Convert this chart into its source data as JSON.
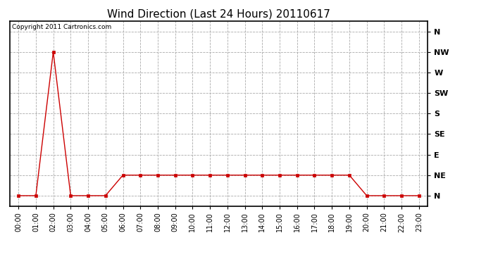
{
  "title": "Wind Direction (Last 24 Hours) 20110617",
  "copyright_text": "Copyright 2011 Cartronics.com",
  "background_color": "#ffffff",
  "plot_bg_color": "#ffffff",
  "line_color": "#cc0000",
  "marker": "s",
  "marker_size": 3,
  "marker_color": "#cc0000",
  "grid_color": "#aaaaaa",
  "grid_style": "--",
  "x_labels": [
    "00:00",
    "01:00",
    "02:00",
    "03:00",
    "04:00",
    "05:00",
    "06:00",
    "07:00",
    "08:00",
    "09:00",
    "10:00",
    "11:00",
    "12:00",
    "13:00",
    "14:00",
    "15:00",
    "16:00",
    "17:00",
    "18:00",
    "19:00",
    "20:00",
    "21:00",
    "22:00",
    "23:00"
  ],
  "y_labels": [
    "N",
    "NE",
    "E",
    "SE",
    "S",
    "SW",
    "W",
    "NW",
    "N"
  ],
  "y_values": [
    0,
    1,
    2,
    3,
    4,
    5,
    6,
    7,
    8
  ],
  "wind_data": [
    0,
    0,
    7,
    0,
    0,
    0,
    1,
    1,
    1,
    1,
    1,
    1,
    1,
    1,
    1,
    1,
    1,
    1,
    1,
    1,
    0,
    0,
    0,
    0
  ],
  "title_fontsize": 11,
  "copyright_fontsize": 6.5,
  "tick_fontsize": 7,
  "ytick_fontsize": 8
}
